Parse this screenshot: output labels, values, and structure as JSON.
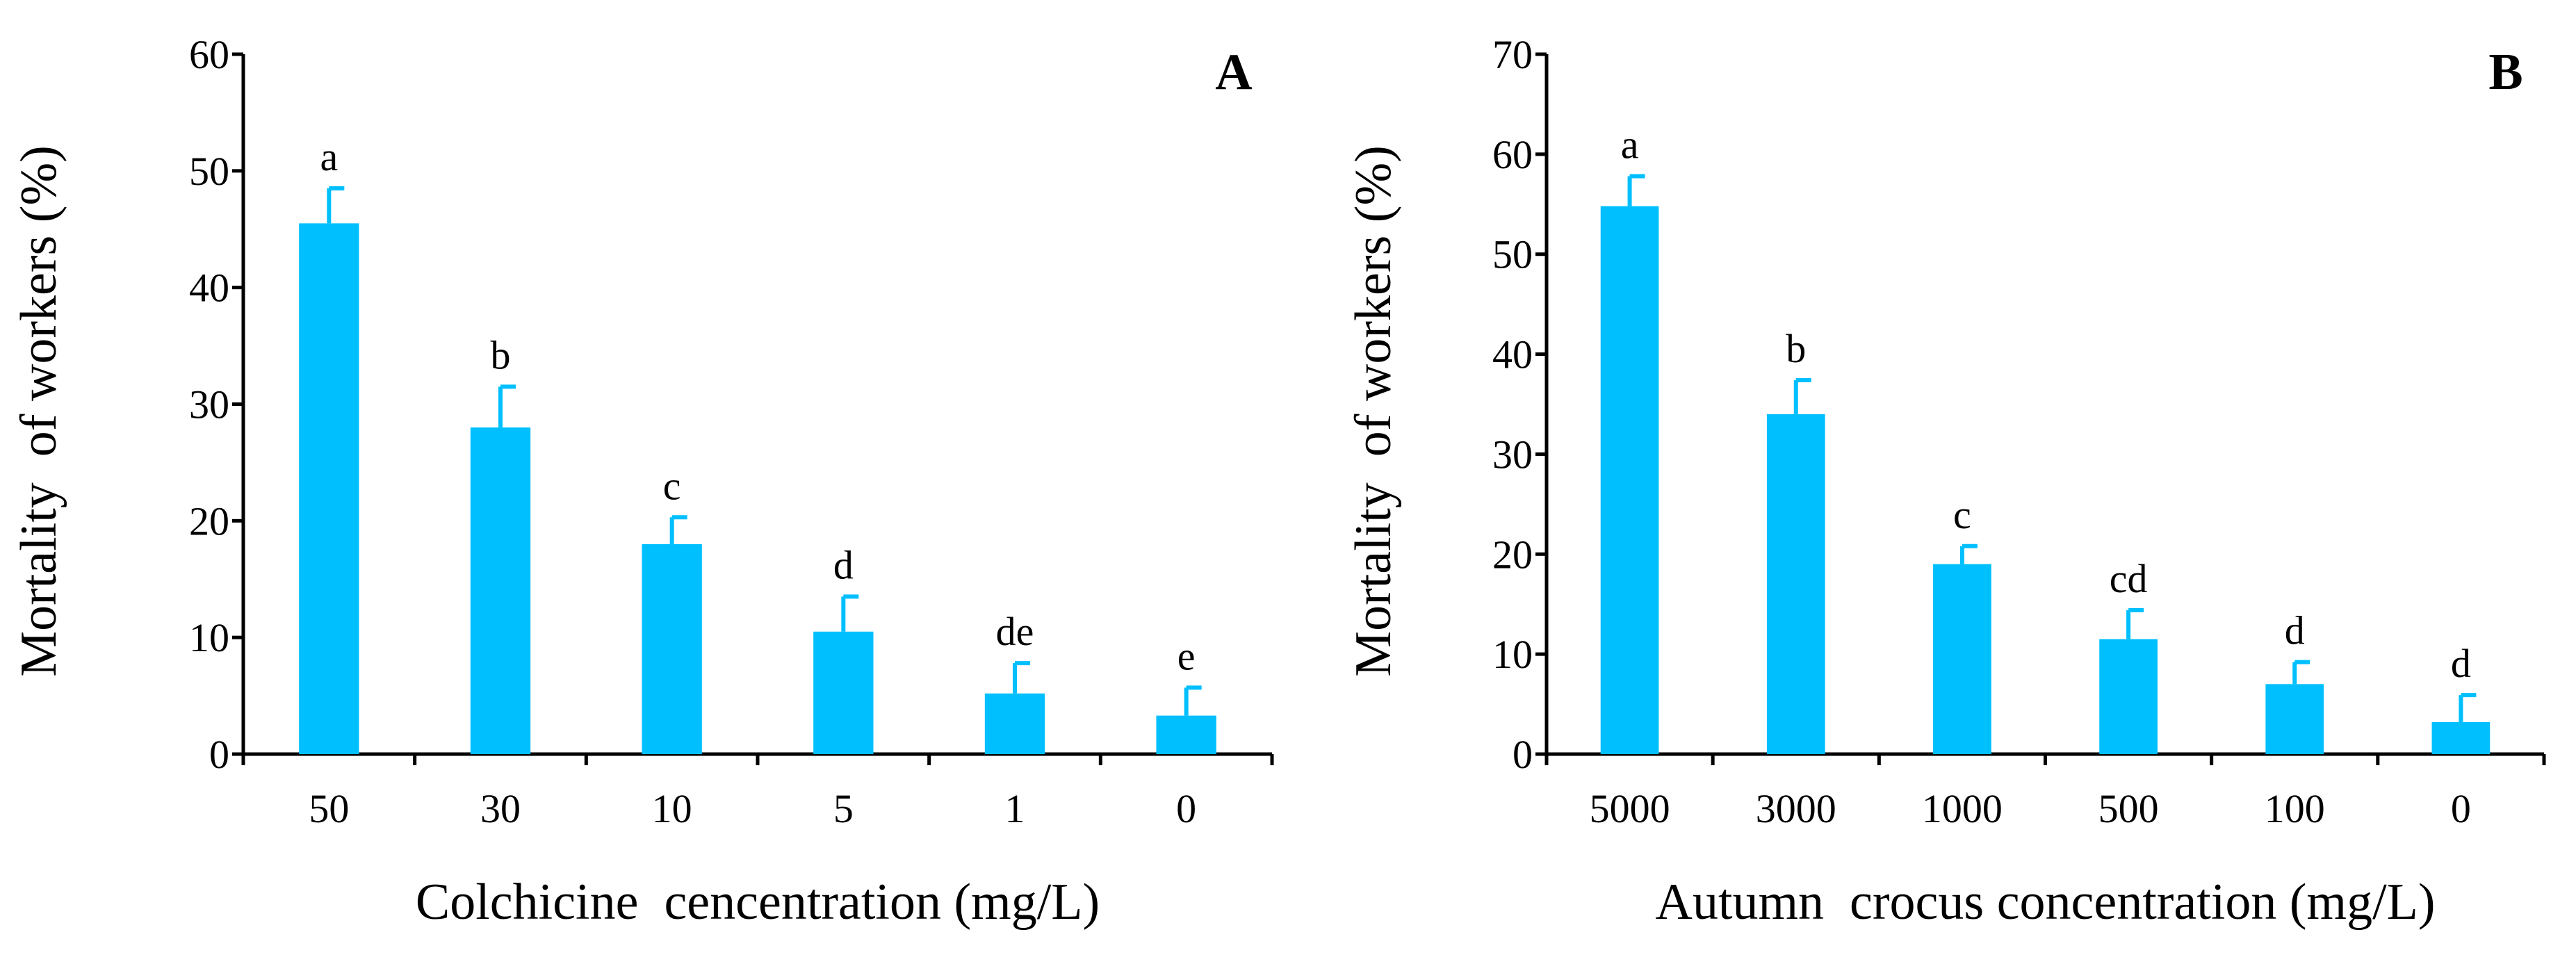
{
  "colors": {
    "bar": "#00BFFF",
    "axis": "#000000",
    "background": "#ffffff"
  },
  "chart_data": [
    {
      "type": "bar",
      "panel_label": "A",
      "xlabel": "Colchicine  cencentration (mg/L)",
      "ylabel": "Mortality  of workers (%)",
      "ylim": [
        0,
        60
      ],
      "yticks": [
        0,
        10,
        20,
        30,
        40,
        50,
        60
      ],
      "categories": [
        "50",
        "30",
        "10",
        "5",
        "1",
        "0"
      ],
      "values": [
        45.5,
        28.0,
        18.0,
        10.5,
        5.2,
        3.3
      ],
      "errors": [
        3.0,
        3.5,
        2.3,
        3.0,
        2.6,
        2.4
      ],
      "significance": [
        "a",
        "b",
        "c",
        "d",
        "de",
        "e"
      ]
    },
    {
      "type": "bar",
      "panel_label": "B",
      "xlabel": "Autumn  crocus concentration (mg/L)",
      "ylabel": "Mortality  of workers (%)",
      "ylim": [
        0,
        70
      ],
      "yticks": [
        0,
        10,
        20,
        30,
        40,
        50,
        60,
        70
      ],
      "categories": [
        "5000",
        "3000",
        "1000",
        "500",
        "100",
        "0"
      ],
      "values": [
        54.8,
        34.0,
        19.0,
        11.5,
        7.0,
        3.2
      ],
      "errors": [
        3.0,
        3.4,
        1.8,
        2.9,
        2.2,
        2.7
      ],
      "significance": [
        "a",
        "b",
        "c",
        "cd",
        "d",
        "d"
      ]
    }
  ]
}
